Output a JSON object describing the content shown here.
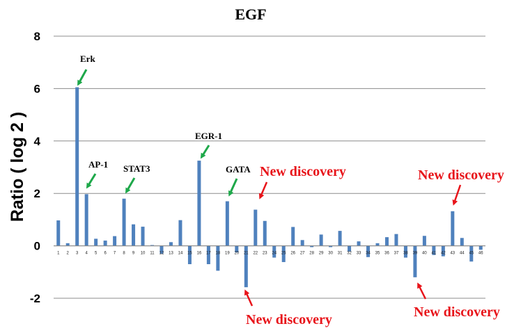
{
  "chart_data": {
    "type": "bar",
    "title": "EGF",
    "xlabel": "",
    "ylabel": "Ratio ( log 2 )",
    "ylim": [
      -2,
      8
    ],
    "yticks": [
      "-2",
      "0",
      "2",
      "4",
      "6",
      "8"
    ],
    "grid": "horizontal",
    "bar_color": "#4f81bd",
    "categories": [
      "1",
      "2",
      "3",
      "4",
      "5",
      "6",
      "7",
      "8",
      "9",
      "10",
      "11",
      "12",
      "13",
      "14",
      "15",
      "16",
      "17",
      "18",
      "19",
      "20",
      "21",
      "22",
      "23",
      "24",
      "25",
      "26",
      "27",
      "28",
      "29",
      "30",
      "31",
      "32",
      "33",
      "34",
      "35",
      "36",
      "37",
      "38",
      "39",
      "40",
      "41",
      "42",
      "43",
      "44",
      "45",
      "46"
    ],
    "values": [
      0.97,
      0.1,
      6.05,
      1.97,
      0.27,
      0.2,
      0.37,
      1.8,
      0.82,
      0.73,
      0.03,
      -0.3,
      0.14,
      0.98,
      -0.7,
      3.25,
      -0.7,
      -0.95,
      1.7,
      -0.25,
      -1.58,
      1.38,
      0.95,
      -0.45,
      -0.62,
      0.72,
      0.22,
      -0.05,
      0.43,
      -0.05,
      0.57,
      -0.22,
      0.17,
      -0.43,
      0.1,
      0.33,
      0.45,
      -0.45,
      -1.2,
      0.38,
      -0.35,
      -0.4,
      1.32,
      0.3,
      -0.6,
      -0.15
    ],
    "annotations": [
      {
        "text": "Erk",
        "color": "black"
      },
      {
        "text": "AP-1",
        "color": "black"
      },
      {
        "text": "STAT3",
        "color": "black"
      },
      {
        "text": "EGR-1",
        "color": "black"
      },
      {
        "text": "GATA",
        "color": "black"
      },
      {
        "text": "New discovery",
        "color": "red"
      },
      {
        "text": "New discovery",
        "color": "red"
      },
      {
        "text": "New discovery",
        "color": "red"
      },
      {
        "text": "New discovery",
        "color": "red"
      }
    ],
    "arrow_colors": {
      "black_label_arrow": "#1ea84a",
      "red_label_arrow": "#e8141a"
    }
  }
}
